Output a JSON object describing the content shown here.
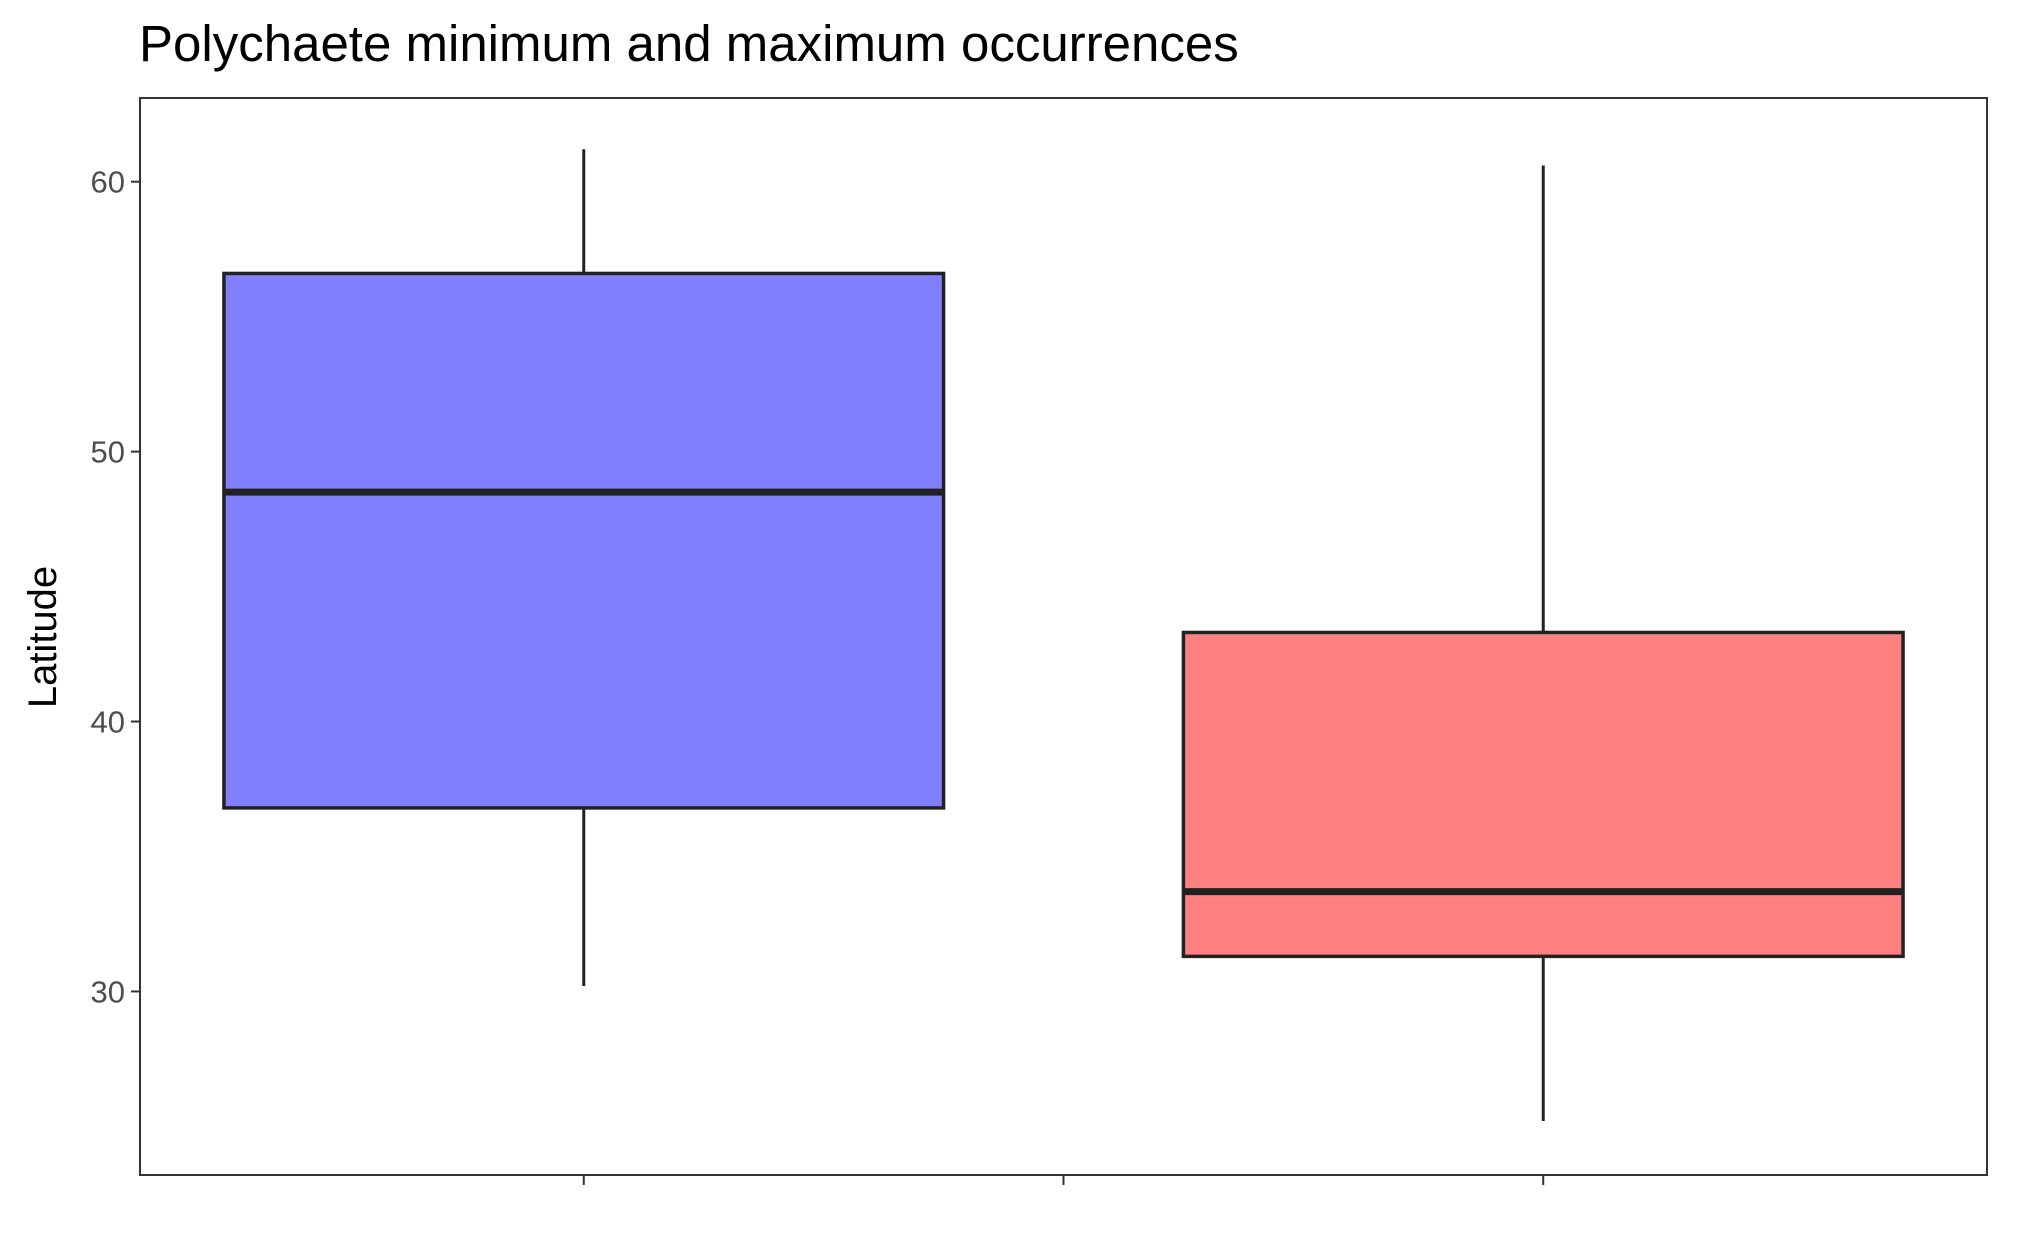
{
  "chart_data": {
    "type": "box",
    "title": "Polychaete minimum and maximum occurrences",
    "xlabel": "",
    "ylabel": "Latitude",
    "ylim": [
      23.2,
      63.1
    ],
    "yticks": [
      30,
      40,
      50,
      60
    ],
    "ytick_labels": [
      "30",
      "40",
      "50",
      "60"
    ],
    "x_tick_count": 3,
    "grid": false,
    "legend": "none",
    "boxes": [
      {
        "position": 1,
        "whisker_low": 30.2,
        "q1": 36.8,
        "median": 48.5,
        "q3": 56.6,
        "whisker_high": 61.2,
        "color": "#8080ff"
      },
      {
        "position": 3,
        "whisker_low": 25.2,
        "q1": 31.3,
        "median": 33.7,
        "q3": 43.3,
        "whisker_high": 60.6,
        "color": "#ff8080"
      }
    ]
  }
}
